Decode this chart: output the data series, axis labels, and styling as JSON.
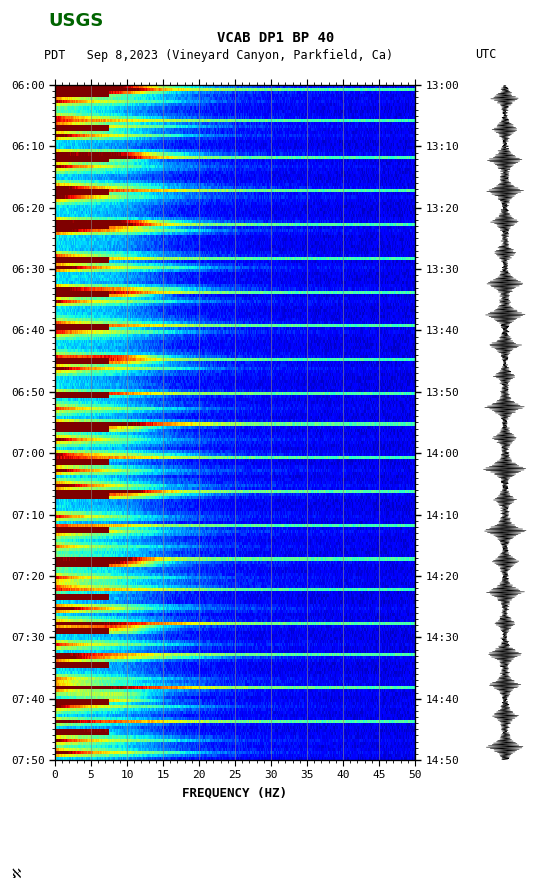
{
  "title_line1": "VCAB DP1 BP 40",
  "title_line2_left": "PDT   Sep 8,2023 (Vineyard Canyon, Parkfield, Ca)",
  "title_line2_right": "UTC",
  "xlabel": "FREQUENCY (HZ)",
  "freq_min": 0,
  "freq_max": 50,
  "freq_ticks": [
    0,
    5,
    10,
    15,
    20,
    25,
    30,
    35,
    40,
    45,
    50
  ],
  "left_time_labels": [
    "06:00",
    "06:10",
    "06:20",
    "06:30",
    "06:40",
    "06:50",
    "07:00",
    "07:10",
    "07:20",
    "07:30",
    "07:40",
    "07:50"
  ],
  "right_time_labels": [
    "13:00",
    "13:10",
    "13:20",
    "13:30",
    "13:40",
    "13:50",
    "14:00",
    "14:10",
    "14:20",
    "14:30",
    "14:40",
    "14:50"
  ],
  "n_time_rows": 220,
  "n_freq_cols": 500,
  "colormap": "jet",
  "vmin": 0.0,
  "vmax": 1.0,
  "background_color": "#ffffff",
  "grid_color": "#888888",
  "grid_alpha": 0.6,
  "fig_width": 5.52,
  "fig_height": 8.92,
  "dpi": 100,
  "usgs_color": "#006400",
  "tick_fontsize": 8,
  "title_fontsize": 10,
  "label_fontsize": 9
}
